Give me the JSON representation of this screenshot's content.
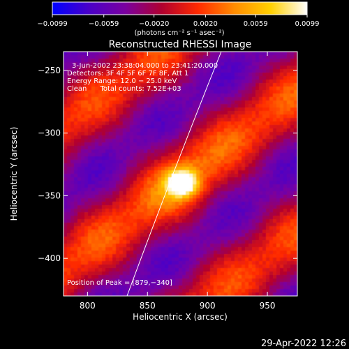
{
  "chart_data": {
    "type": "heatmap",
    "title": "Reconstructed RHESSI Image",
    "xlabel": "Heliocentric X (arcsec)",
    "ylabel": "Heliocentric Y (arcsec)",
    "xlim": [
      780,
      975
    ],
    "ylim": [
      -430,
      -235
    ],
    "x_ticks": [
      "800",
      "850",
      "900",
      "950"
    ],
    "x_tick_values": [
      800,
      850,
      900,
      950
    ],
    "y_ticks": [
      "−250",
      "−300",
      "−350",
      "−400"
    ],
    "y_tick_values": [
      -250,
      -300,
      -350,
      -400
    ],
    "colorbar": {
      "min": -0.0099,
      "max": 0.0099,
      "ticks": [
        "−0.0099",
        "−0.0059",
        "−0.0020",
        "0.0020",
        "0.0059",
        "0.0099"
      ],
      "tick_values": [
        -0.0099,
        -0.0059,
        -0.002,
        0.002,
        0.0059,
        0.0099
      ],
      "unit_label": "(photons cm⁻² s⁻¹ asec⁻²)",
      "colormap": [
        "#0000ff",
        "#4a00c8",
        "#7a00a0",
        "#b00030",
        "#ff2a00",
        "#ff8c00",
        "#ffd000",
        "#ffffff"
      ]
    },
    "annotations": [
      "3-Jun-2002 23:38:04.000  to 23:41:20.000",
      "Detectors: 3F 4F 5F 6F 7F 8F, Att 1",
      "Energy Range: 12.0 − 25.0 keV",
      "Clean      Total counts: 7.52E+03"
    ],
    "peak_label": "Position of Peak = [879,−340]",
    "peak": {
      "x": 879,
      "y": -340
    },
    "limb_line": "white",
    "grid": false
  },
  "footer": {
    "timestamp": "29-Apr-2022 12:26"
  }
}
